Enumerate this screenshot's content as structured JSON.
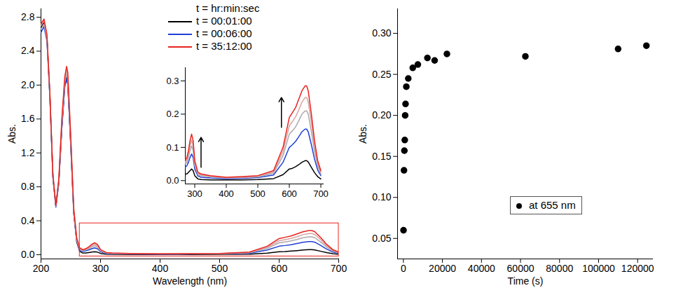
{
  "chart_data": [
    {
      "type": "line",
      "x_label": "Wavelength (nm)",
      "y_label": "Abs.",
      "x": [
        200,
        205,
        210,
        215,
        220,
        225,
        230,
        235,
        240,
        243,
        245,
        250,
        255,
        260,
        265,
        270,
        275,
        280,
        285,
        290,
        295,
        300,
        310,
        320,
        350,
        400,
        450,
        500,
        550,
        580,
        600,
        610,
        620,
        630,
        640,
        650,
        655,
        660,
        670,
        680,
        690,
        700
      ],
      "xlim": [
        200,
        700
      ],
      "xticks": [
        200,
        300,
        400,
        500,
        600,
        700
      ],
      "ylim": [
        -0.05,
        2.9
      ],
      "yticks": [
        {
          "value": 0,
          "label": "0.0"
        },
        0.4,
        0.8,
        1.2,
        1.6,
        {
          "value": 2,
          "label": "2.0"
        },
        2.4,
        2.8
      ],
      "legend": "top",
      "legend_title": "t = hr:min:sec",
      "series": [
        {
          "name": "t = 00:01:00",
          "color": "#000000",
          "values": [
            2.68,
            2.74,
            2.56,
            1.86,
            0.92,
            0.57,
            0.86,
            1.5,
            2.0,
            2.1,
            2.03,
            1.3,
            0.5,
            0.15,
            0.04,
            0.02,
            0.02,
            0.025,
            0.03,
            0.035,
            0.03,
            0.015,
            0.005,
            0.003,
            0.002,
            0.002,
            0.002,
            0.003,
            0.006,
            0.018,
            0.035,
            0.037,
            0.042,
            0.048,
            0.055,
            0.06,
            0.06,
            0.056,
            0.04,
            0.024,
            0.012,
            0.005
          ]
        },
        {
          "name": "t = 00:06:00",
          "color": "#1f3fd6",
          "values": [
            2.62,
            2.69,
            2.52,
            1.84,
            0.91,
            0.56,
            0.85,
            1.48,
            1.98,
            2.07,
            2.0,
            1.28,
            0.49,
            0.16,
            0.05,
            0.04,
            0.045,
            0.055,
            0.07,
            0.08,
            0.07,
            0.035,
            0.014,
            0.01,
            0.008,
            0.006,
            0.007,
            0.009,
            0.017,
            0.055,
            0.1,
            0.108,
            0.118,
            0.132,
            0.147,
            0.155,
            0.155,
            0.147,
            0.108,
            0.065,
            0.032,
            0.015
          ]
        },
        {
          "name": null,
          "color": "#b0a8ac",
          "values": [
            2.66,
            2.72,
            2.55,
            1.86,
            0.93,
            0.57,
            0.87,
            1.53,
            2.03,
            2.13,
            2.06,
            1.33,
            0.51,
            0.17,
            0.06,
            0.05,
            0.055,
            0.07,
            0.09,
            0.105,
            0.09,
            0.045,
            0.018,
            0.014,
            0.011,
            0.008,
            0.009,
            0.011,
            0.022,
            0.075,
            0.14,
            0.15,
            0.162,
            0.18,
            0.2,
            0.21,
            0.21,
            0.2,
            0.147,
            0.088,
            0.044,
            0.02
          ]
        },
        {
          "name": null,
          "color": "#d9a0a0",
          "values": [
            2.7,
            2.76,
            2.58,
            1.88,
            0.94,
            0.58,
            0.88,
            1.56,
            2.06,
            2.17,
            2.1,
            1.36,
            0.53,
            0.18,
            0.07,
            0.055,
            0.062,
            0.08,
            0.105,
            0.122,
            0.105,
            0.052,
            0.021,
            0.017,
            0.013,
            0.009,
            0.01,
            0.013,
            0.026,
            0.088,
            0.165,
            0.178,
            0.192,
            0.213,
            0.236,
            0.25,
            0.25,
            0.237,
            0.175,
            0.105,
            0.052,
            0.025
          ]
        },
        {
          "name": "t = 35:12:00",
          "color": "#e8231e",
          "values": [
            2.72,
            2.78,
            2.6,
            1.9,
            0.95,
            0.58,
            0.9,
            1.6,
            2.1,
            2.22,
            2.15,
            1.4,
            0.55,
            0.2,
            0.08,
            0.06,
            0.07,
            0.09,
            0.12,
            0.14,
            0.12,
            0.06,
            0.025,
            0.02,
            0.015,
            0.01,
            0.012,
            0.015,
            0.03,
            0.1,
            0.19,
            0.205,
            0.22,
            0.245,
            0.27,
            0.285,
            0.285,
            0.27,
            0.2,
            0.12,
            0.06,
            0.03
          ]
        }
      ],
      "zoom_box": {
        "x": [
          265,
          700
        ],
        "y": [
          -0.02,
          0.37
        ],
        "color": "#e8231e"
      },
      "inset": {
        "xlim": [
          270,
          710
        ],
        "xticks": [
          300,
          400,
          500,
          600,
          700
        ],
        "ylim": [
          -0.01,
          0.34
        ],
        "yticks": [
          {
            "value": 0,
            "label": "0.0"
          },
          0.1,
          0.2,
          0.3
        ],
        "arrows": [
          {
            "x": 320,
            "y1": 0.04,
            "y2": 0.13
          },
          {
            "x": 575,
            "y1": 0.16,
            "y2": 0.25
          }
        ]
      }
    },
    {
      "type": "scatter",
      "x_label": "Time (s)",
      "y_label": "Abs.",
      "x": [
        60,
        300,
        500,
        700,
        900,
        1100,
        1500,
        2500,
        4800,
        7400,
        12300,
        16000,
        22300,
        62500,
        110000,
        124500
      ],
      "xlim": [
        -3000,
        128000
      ],
      "xticks": [
        0,
        20000,
        40000,
        60000,
        80000,
        100000,
        120000
      ],
      "ylim": [
        0.025,
        0.33
      ],
      "yticks": [
        0.05,
        {
          "value": 0.1,
          "label": "0.10"
        },
        0.15,
        {
          "value": 0.2,
          "label": "0.20"
        },
        0.25,
        {
          "value": 0.3,
          "label": "0.30"
        }
      ],
      "legend": "center",
      "series": [
        {
          "name": "at 655 nm",
          "color": "#000000",
          "marker": "circle",
          "values": [
            0.06,
            0.133,
            0.157,
            0.17,
            0.2,
            0.214,
            0.235,
            0.245,
            0.258,
            0.262,
            0.27,
            0.267,
            0.275,
            0.272,
            0.281,
            0.285
          ]
        }
      ]
    }
  ]
}
